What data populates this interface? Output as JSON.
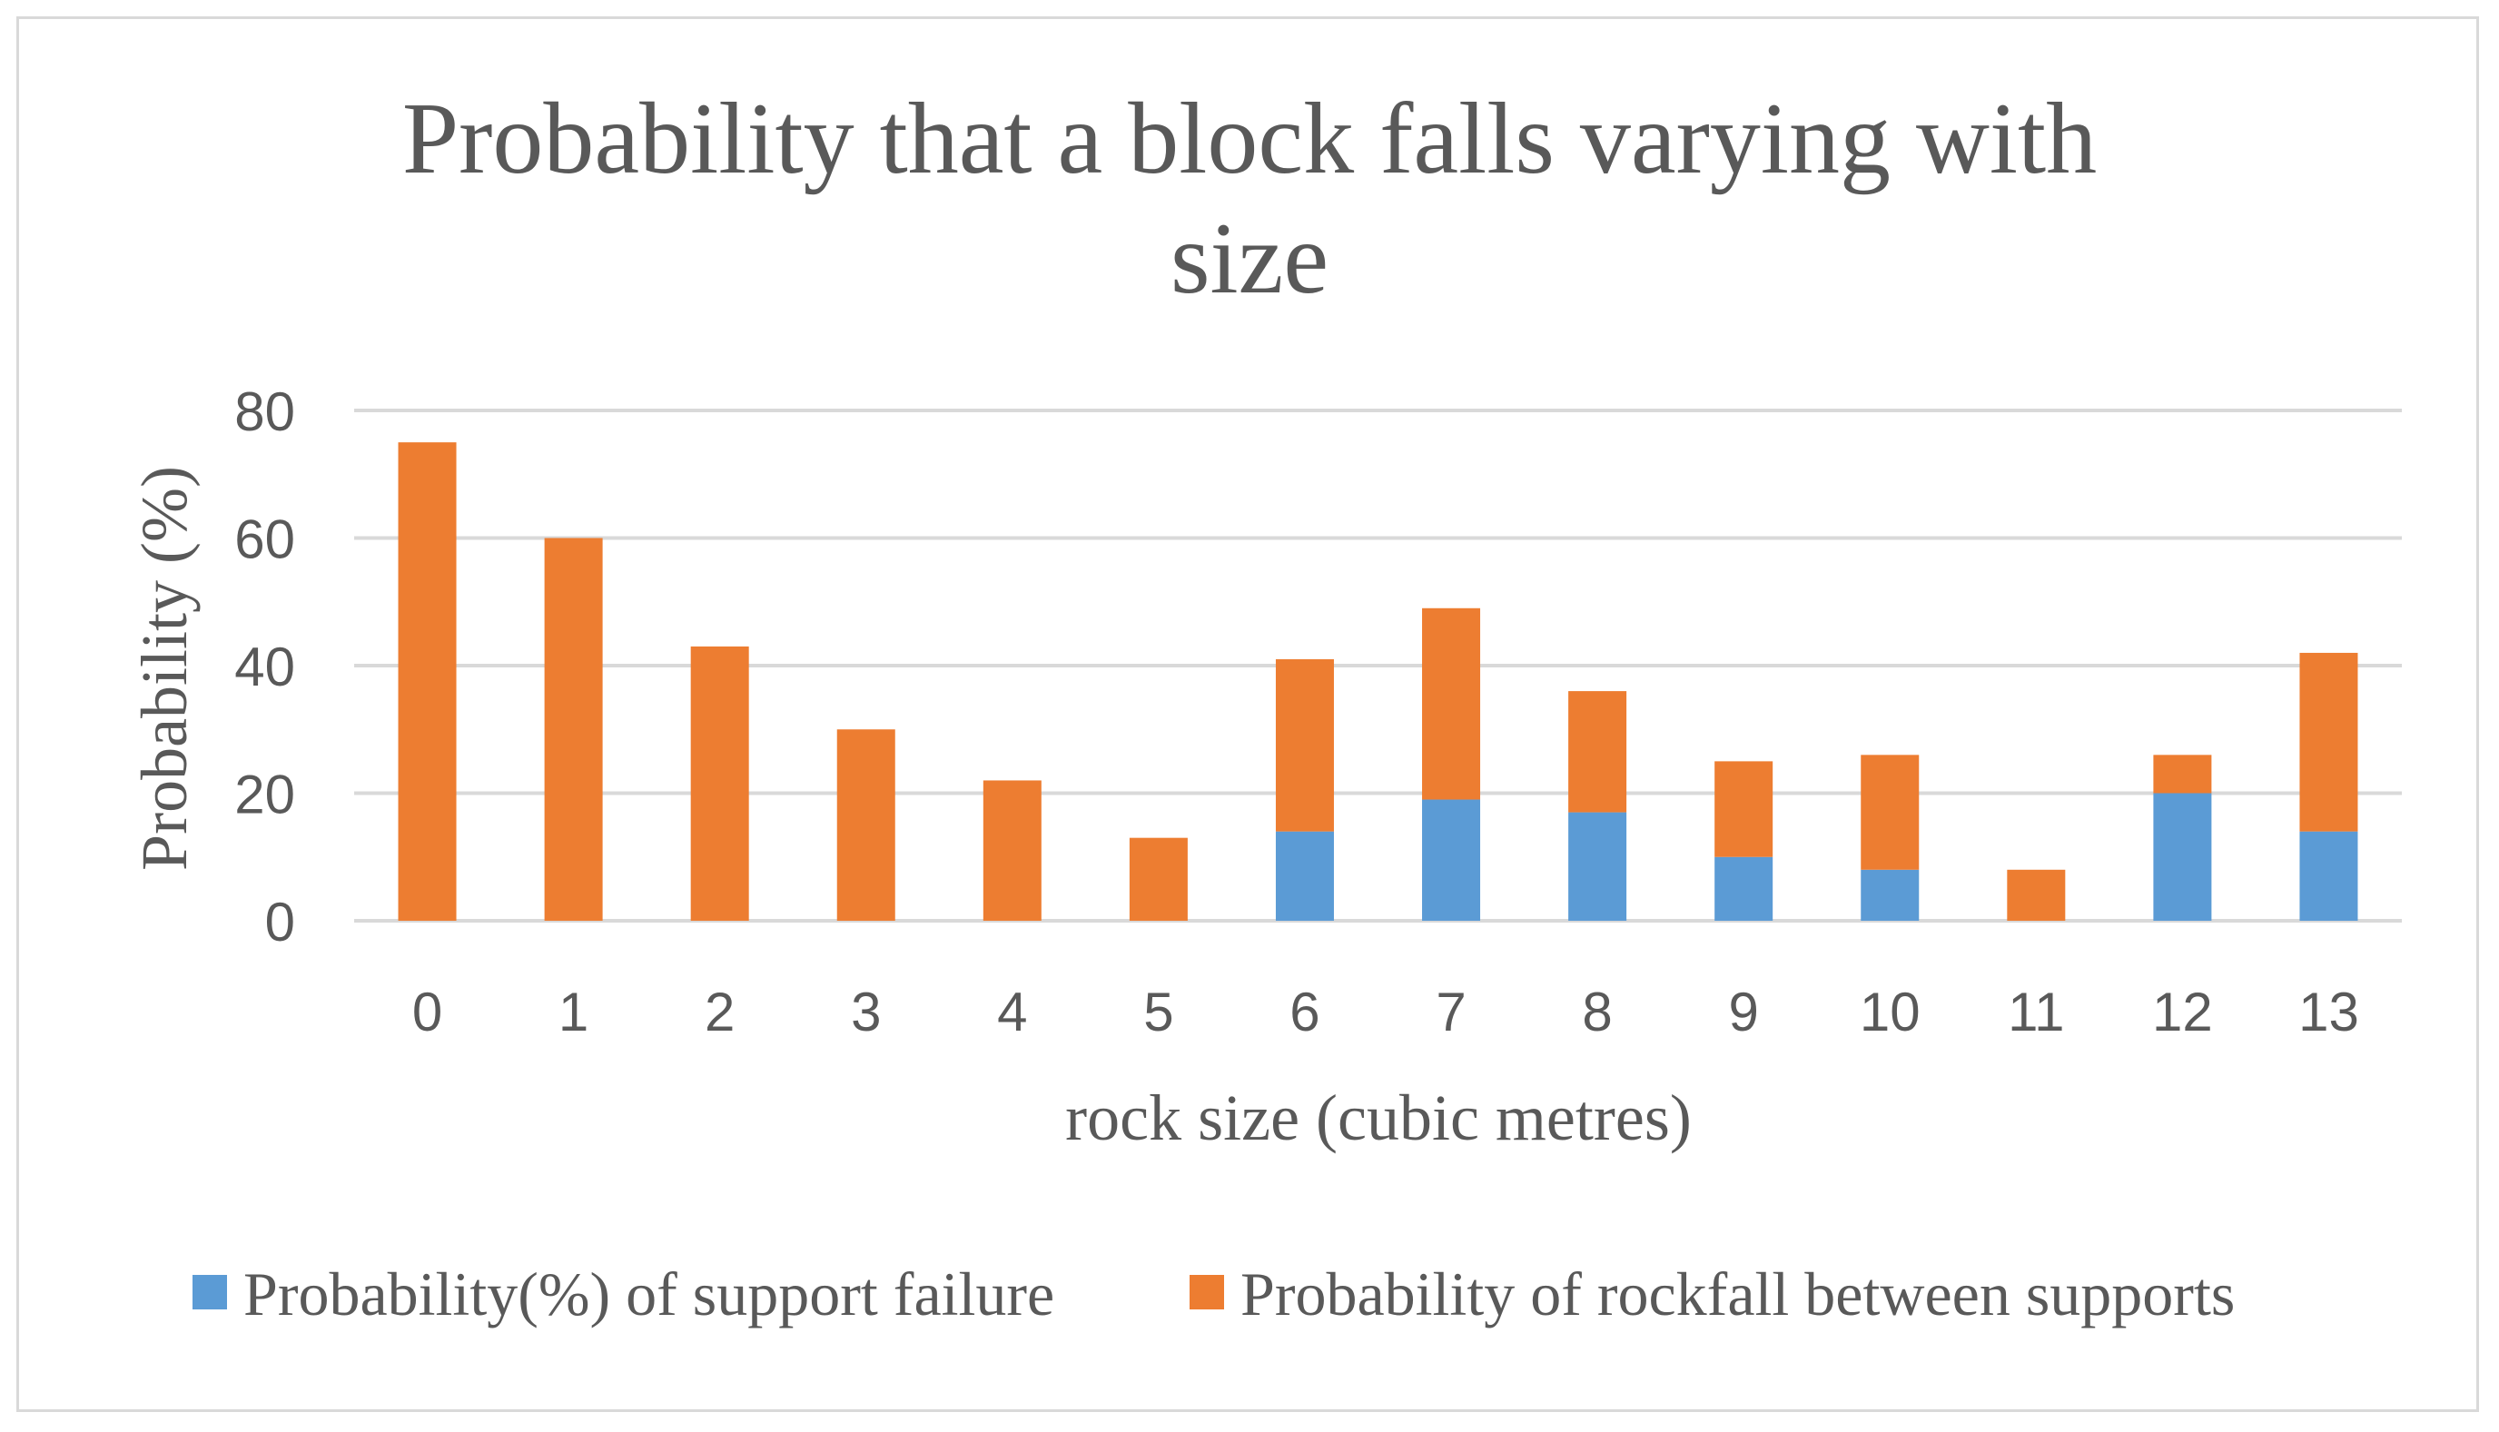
{
  "chart_data": {
    "type": "bar",
    "stacked": true,
    "title": "Probability that a block falls varying with size",
    "title_lines": [
      "Probability that a block falls varying with",
      "size"
    ],
    "xlabel": "rock size (cubic metres)",
    "ylabel": "Probability (%)",
    "ylim": [
      0,
      80
    ],
    "yticks": [
      0,
      20,
      40,
      60,
      80
    ],
    "grid": true,
    "legend_position": "bottom",
    "categories": [
      "0",
      "1",
      "2",
      "3",
      "4",
      "5",
      "6",
      "7",
      "8",
      "9",
      "10",
      "11",
      "12",
      "13"
    ],
    "series": [
      {
        "name": "Probability(%) of support failure",
        "color": "#5b9bd5",
        "values": [
          0,
          0,
          0,
          0,
          0,
          0,
          14,
          19,
          17,
          10,
          8,
          0,
          20,
          14
        ]
      },
      {
        "name": "Probability of rockfall between supports",
        "color": "#ed7d31",
        "values": [
          75,
          60,
          43,
          30,
          22,
          13,
          27,
          30,
          19,
          15,
          18,
          8,
          6,
          28
        ]
      }
    ]
  }
}
